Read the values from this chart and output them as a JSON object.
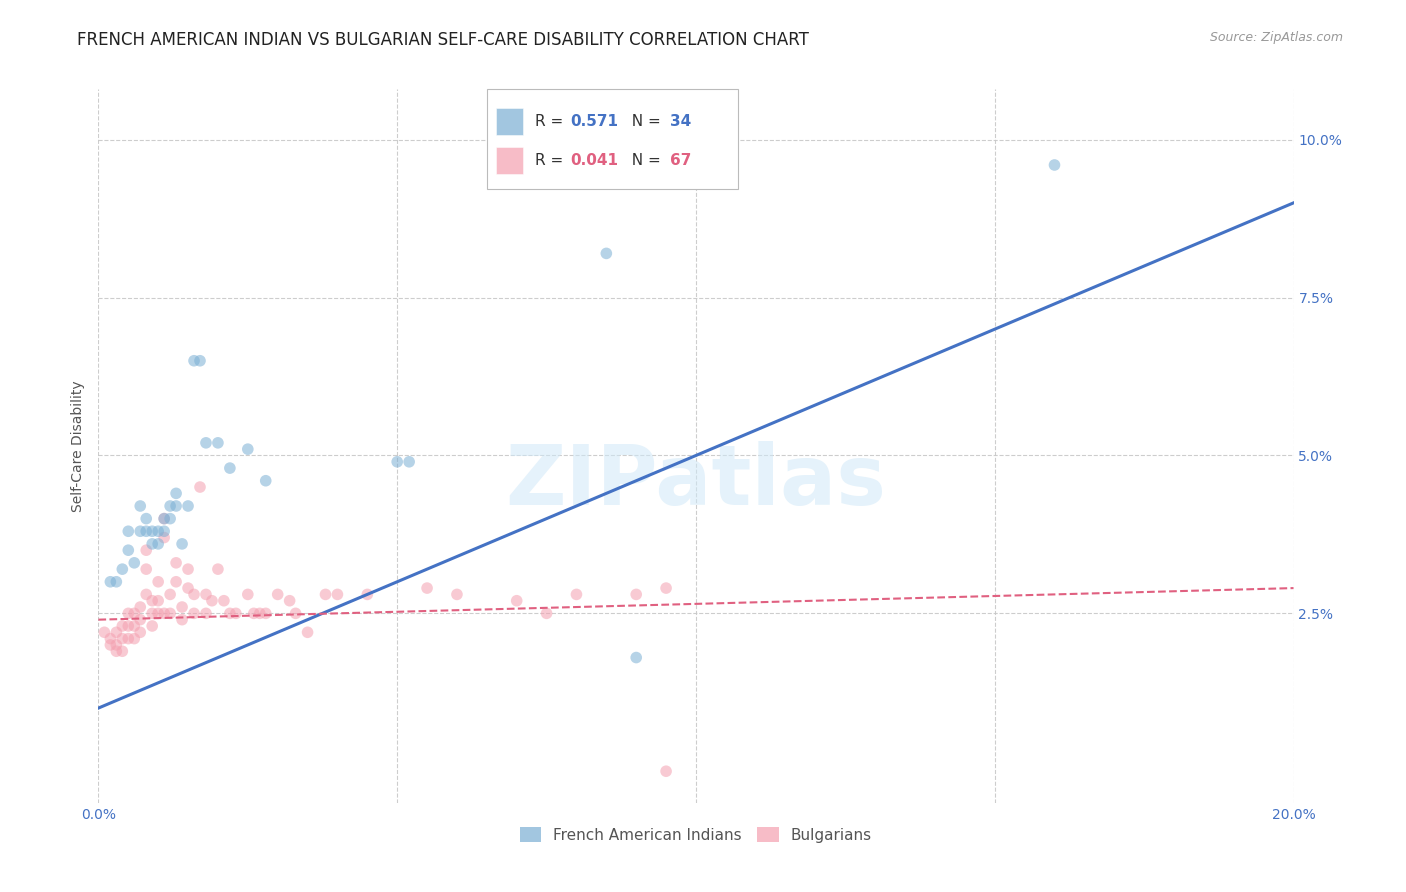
{
  "title": "FRENCH AMERICAN INDIAN VS BULGARIAN SELF-CARE DISABILITY CORRELATION CHART",
  "source": "Source: ZipAtlas.com",
  "xlabel": "",
  "ylabel": "Self-Care Disability",
  "xlim": [
    0.0,
    0.2
  ],
  "ylim": [
    -0.005,
    0.108
  ],
  "yticks": [
    0.025,
    0.05,
    0.075,
    0.1
  ],
  "ytick_labels": [
    "2.5%",
    "5.0%",
    "7.5%",
    "10.0%"
  ],
  "xticks": [
    0.0,
    0.05,
    0.1,
    0.15,
    0.2
  ],
  "xtick_labels": [
    "0.0%",
    "",
    "",
    "",
    "20.0%"
  ],
  "watermark_text": "ZIPatlas",
  "blue_R": "0.571",
  "blue_N": "34",
  "pink_R": "0.041",
  "pink_N": "67",
  "blue_scatter_x": [
    0.002,
    0.003,
    0.004,
    0.005,
    0.005,
    0.006,
    0.007,
    0.007,
    0.008,
    0.008,
    0.009,
    0.009,
    0.01,
    0.01,
    0.011,
    0.011,
    0.012,
    0.012,
    0.013,
    0.013,
    0.014,
    0.015,
    0.016,
    0.017,
    0.018,
    0.02,
    0.022,
    0.025,
    0.028,
    0.05,
    0.052,
    0.085,
    0.09,
    0.16
  ],
  "blue_scatter_y": [
    0.03,
    0.03,
    0.032,
    0.035,
    0.038,
    0.033,
    0.038,
    0.042,
    0.038,
    0.04,
    0.038,
    0.036,
    0.038,
    0.036,
    0.04,
    0.038,
    0.042,
    0.04,
    0.042,
    0.044,
    0.036,
    0.042,
    0.065,
    0.065,
    0.052,
    0.052,
    0.048,
    0.051,
    0.046,
    0.049,
    0.049,
    0.082,
    0.018,
    0.096
  ],
  "pink_scatter_x": [
    0.001,
    0.002,
    0.002,
    0.003,
    0.003,
    0.003,
    0.004,
    0.004,
    0.004,
    0.005,
    0.005,
    0.005,
    0.006,
    0.006,
    0.006,
    0.007,
    0.007,
    0.007,
    0.008,
    0.008,
    0.008,
    0.009,
    0.009,
    0.009,
    0.01,
    0.01,
    0.01,
    0.011,
    0.011,
    0.011,
    0.012,
    0.012,
    0.013,
    0.013,
    0.014,
    0.014,
    0.015,
    0.015,
    0.016,
    0.016,
    0.017,
    0.018,
    0.018,
    0.019,
    0.02,
    0.021,
    0.022,
    0.023,
    0.025,
    0.026,
    0.027,
    0.028,
    0.03,
    0.032,
    0.033,
    0.035,
    0.038,
    0.04,
    0.045,
    0.055,
    0.06,
    0.07,
    0.075,
    0.08,
    0.09,
    0.095,
    0.095
  ],
  "pink_scatter_y": [
    0.022,
    0.021,
    0.02,
    0.022,
    0.02,
    0.019,
    0.023,
    0.021,
    0.019,
    0.025,
    0.023,
    0.021,
    0.025,
    0.023,
    0.021,
    0.026,
    0.024,
    0.022,
    0.035,
    0.032,
    0.028,
    0.027,
    0.025,
    0.023,
    0.03,
    0.027,
    0.025,
    0.04,
    0.037,
    0.025,
    0.028,
    0.025,
    0.033,
    0.03,
    0.026,
    0.024,
    0.032,
    0.029,
    0.028,
    0.025,
    0.045,
    0.028,
    0.025,
    0.027,
    0.032,
    0.027,
    0.025,
    0.025,
    0.028,
    0.025,
    0.025,
    0.025,
    0.028,
    0.027,
    0.025,
    0.022,
    0.028,
    0.028,
    0.028,
    0.029,
    0.028,
    0.027,
    0.025,
    0.028,
    0.028,
    0.029,
    0.0
  ],
  "blue_line_x": [
    0.0,
    0.2
  ],
  "blue_line_y": [
    0.01,
    0.09
  ],
  "pink_line_x": [
    0.0,
    0.2
  ],
  "pink_line_y": [
    0.024,
    0.029
  ],
  "blue_color": "#7bafd4",
  "pink_color": "#f4a0b0",
  "blue_line_color": "#4472c4",
  "pink_line_color": "#e06080",
  "background_color": "#ffffff",
  "grid_color": "#c8c8c8",
  "title_fontsize": 12,
  "axis_label_fontsize": 10,
  "tick_fontsize": 10,
  "tick_color": "#4472c4",
  "marker_size": 70,
  "marker_alpha": 0.55
}
